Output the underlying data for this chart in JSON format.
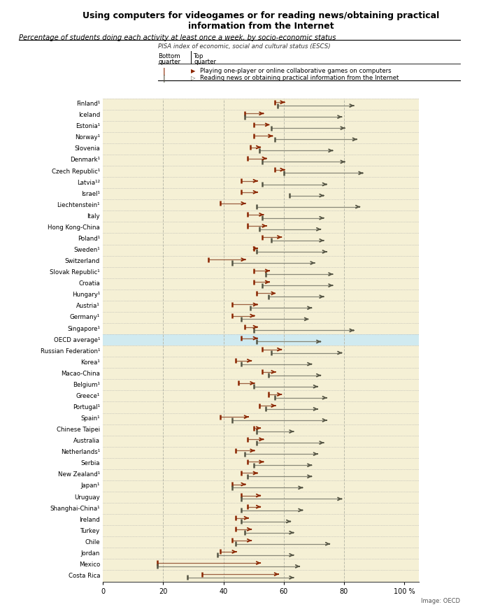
{
  "title": "Using computers for videogames or for reading news/obtaining practical\ninformation from the Internet",
  "subtitle": "Percentage of students doing each activity at least once a week, by socio-economic status",
  "legend_label1": "Playing one-player or online collaborative games on computers",
  "legend_label2": "Reading news or obtaining practical information from the Internet",
  "pisa_label": "PISA index of economic, social and cultural status (ESCS)",
  "bg_color": "#f5f0d5",
  "highlight_color": "#d0eaf0",
  "countries": [
    "Finland¹",
    "Iceland",
    "Estonia¹",
    "Norway¹",
    "Slovenia",
    "Denmark¹",
    "Czech Republic¹",
    "Latvia¹²",
    "Israel¹",
    "Liechtenstein¹",
    "Italy",
    "Hong Kong-China",
    "Poland¹",
    "Sweden¹",
    "Switzerland",
    "Slovak Republic¹",
    "Croatia",
    "Hungary¹",
    "Austria¹",
    "Germany¹",
    "Singapore¹",
    "OECD average¹",
    "Russian Federation¹",
    "Korea¹",
    "Macao-China",
    "Belgium¹",
    "Greece¹",
    "Portugal¹",
    "Spain¹",
    "Chinese Taipei",
    "Australia",
    "Netherlands¹",
    "Serbia",
    "New Zealand¹",
    "Japan¹",
    "Uruguay",
    "Shanghai-China¹",
    "Ireland",
    "Turkey",
    "Chile",
    "Jordan",
    "Mexico",
    "Costa Rica"
  ],
  "oecd_index": 21,
  "games_bottom": [
    57,
    47,
    50,
    50,
    49,
    48,
    57,
    46,
    46,
    39,
    48,
    48,
    53,
    50,
    35,
    50,
    50,
    51,
    43,
    43,
    47,
    46,
    53,
    44,
    53,
    45,
    55,
    52,
    39,
    50,
    48,
    44,
    48,
    46,
    43,
    46,
    48,
    44,
    44,
    43,
    39,
    18,
    33
  ],
  "games_top": [
    60,
    53,
    55,
    56,
    52,
    54,
    60,
    51,
    51,
    47,
    53,
    54,
    59,
    51,
    47,
    55,
    55,
    57,
    51,
    50,
    51,
    51,
    59,
    49,
    57,
    50,
    59,
    57,
    48,
    52,
    53,
    50,
    53,
    51,
    47,
    52,
    52,
    48,
    49,
    49,
    44,
    52,
    58
  ],
  "news_bottom": [
    58,
    47,
    56,
    57,
    52,
    53,
    60,
    53,
    62,
    51,
    53,
    52,
    56,
    51,
    43,
    54,
    53,
    55,
    49,
    46,
    50,
    51,
    56,
    46,
    55,
    50,
    57,
    54,
    43,
    51,
    51,
    47,
    50,
    48,
    43,
    46,
    46,
    46,
    47,
    44,
    38,
    18,
    28
  ],
  "news_top": [
    83,
    79,
    80,
    84,
    76,
    80,
    86,
    74,
    73,
    85,
    73,
    72,
    73,
    74,
    70,
    76,
    76,
    73,
    69,
    68,
    83,
    72,
    79,
    69,
    72,
    71,
    74,
    71,
    74,
    63,
    73,
    71,
    69,
    69,
    66,
    79,
    66,
    62,
    63,
    75,
    63,
    65,
    63
  ],
  "games_color": "#8b2500",
  "news_color": "#555544",
  "line_color_games": "#9b6040",
  "line_color_news": "#888878",
  "xticks": [
    0,
    20,
    40,
    60,
    80,
    100
  ],
  "xlim": [
    0,
    105
  ]
}
